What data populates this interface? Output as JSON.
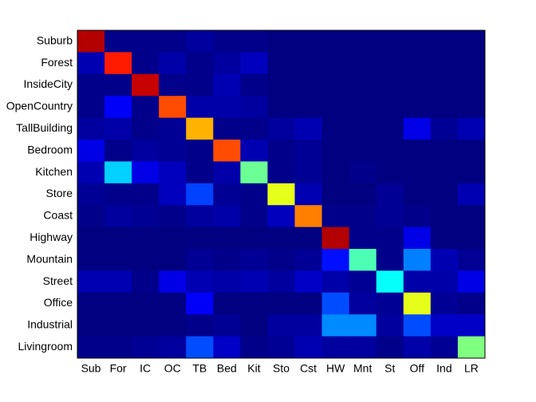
{
  "chart_data": {
    "type": "heatmap",
    "colormap": "jet",
    "clim": [
      0,
      1
    ],
    "y_categories": [
      "Suburb",
      "Forest",
      "InsideCity",
      "OpenCountry",
      "TallBuilding",
      "Bedroom",
      "Kitchen",
      "Store",
      "Coast",
      "Highway",
      "Mountain",
      "Street",
      "Office",
      "Industrial",
      "Livingroom"
    ],
    "x_categories": [
      "Sub",
      "For",
      "IC",
      "OC",
      "TB",
      "Bed",
      "Kit",
      "Sto",
      "Cst",
      "HW",
      "Mnt",
      "St",
      "Off",
      "Ind",
      "LR"
    ],
    "z": [
      [
        0.95,
        0.01,
        0.01,
        0.01,
        0.03,
        0.01,
        0.01,
        0,
        0,
        0,
        0,
        0,
        0,
        0,
        0
      ],
      [
        0.05,
        0.85,
        0.01,
        0.04,
        0.01,
        0.03,
        0.06,
        0,
        0,
        0,
        0,
        0,
        0,
        0,
        0
      ],
      [
        0.01,
        0.01,
        0.93,
        0.01,
        0.01,
        0.05,
        0.01,
        0,
        0,
        0,
        0,
        0,
        0,
        0,
        0
      ],
      [
        0.01,
        0.12,
        0.01,
        0.8,
        0.04,
        0.04,
        0.03,
        0,
        0,
        0,
        0,
        0,
        0,
        0,
        0
      ],
      [
        0.03,
        0.04,
        0.01,
        0.02,
        0.7,
        0.01,
        0.01,
        0.03,
        0.05,
        0,
        0,
        0,
        0.1,
        0.02,
        0.05
      ],
      [
        0.1,
        0.01,
        0.03,
        0.02,
        0.01,
        0.8,
        0.05,
        0.01,
        0.02,
        0,
        0,
        0,
        0,
        0,
        0
      ],
      [
        0.05,
        0.33,
        0.1,
        0.06,
        0.01,
        0.04,
        0.48,
        0.01,
        0.02,
        0,
        0.01,
        0,
        0,
        0,
        0
      ],
      [
        0.02,
        0.01,
        0.01,
        0.06,
        0.19,
        0.02,
        0.01,
        0.6,
        0.05,
        0,
        0,
        0.02,
        0,
        0,
        0.05
      ],
      [
        0.01,
        0.03,
        0.02,
        0.01,
        0.03,
        0.04,
        0.01,
        0.06,
        0.75,
        0.01,
        0.01,
        0.02,
        0.01,
        0,
        0
      ],
      [
        0,
        0,
        0,
        0,
        0,
        0,
        0,
        0,
        0,
        0.95,
        0.01,
        0.01,
        0.1,
        0,
        0
      ],
      [
        0,
        0,
        0,
        0,
        0.02,
        0.01,
        0.02,
        0.01,
        0.02,
        0.14,
        0.45,
        0.01,
        0.25,
        0.05,
        0.02
      ],
      [
        0.05,
        0.05,
        0.01,
        0.1,
        0.05,
        0.04,
        0.05,
        0.03,
        0.07,
        0.04,
        0.02,
        0.38,
        0.04,
        0.04,
        0.1
      ],
      [
        0,
        0,
        0,
        0,
        0.12,
        0,
        0,
        0,
        0,
        0.2,
        0.03,
        0.02,
        0.6,
        0.02,
        0.01
      ],
      [
        0,
        0,
        0,
        0,
        0.01,
        0.02,
        0,
        0.03,
        0.03,
        0.26,
        0.26,
        0.03,
        0.2,
        0.07,
        0.07
      ],
      [
        0.01,
        0.01,
        0.02,
        0.03,
        0.2,
        0.07,
        0.01,
        0.02,
        0.05,
        0.03,
        0.03,
        0.01,
        0.04,
        0.02,
        0.5
      ]
    ]
  }
}
